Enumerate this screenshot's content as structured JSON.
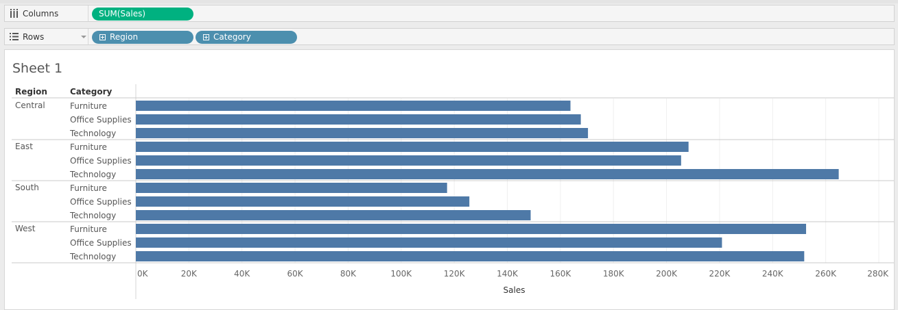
{
  "shelves": {
    "columns": {
      "label": "Columns",
      "pills": [
        "SUM(Sales)"
      ]
    },
    "rows": {
      "label": "Rows",
      "pills": [
        "Region",
        "Category"
      ]
    }
  },
  "sheet": {
    "title": "Sheet 1",
    "headers": {
      "region": "Region",
      "category": "Category"
    }
  },
  "colors": {
    "bar": "#4e79a7",
    "measure_pill": "#00b180",
    "dimension_pill": "#4c8fae"
  },
  "chart_data": {
    "type": "bar",
    "orientation": "horizontal",
    "xlabel": "Sales",
    "xlim": [
      0,
      280000
    ],
    "xticks": [
      "0K",
      "20K",
      "40K",
      "60K",
      "80K",
      "100K",
      "120K",
      "140K",
      "160K",
      "180K",
      "200K",
      "220K",
      "240K",
      "260K",
      "280K"
    ],
    "grid": true,
    "groups": [
      {
        "region": "Central",
        "rows": [
          {
            "category": "Furniture",
            "value": 163800
          },
          {
            "category": "Office Supplies",
            "value": 167700
          },
          {
            "category": "Technology",
            "value": 170400
          }
        ]
      },
      {
        "region": "East",
        "rows": [
          {
            "category": "Furniture",
            "value": 208300
          },
          {
            "category": "Office Supplies",
            "value": 205500
          },
          {
            "category": "Technology",
            "value": 264900
          }
        ]
      },
      {
        "region": "South",
        "rows": [
          {
            "category": "Furniture",
            "value": 117300
          },
          {
            "category": "Office Supplies",
            "value": 125700
          },
          {
            "category": "Technology",
            "value": 148800
          }
        ]
      },
      {
        "region": "West",
        "rows": [
          {
            "category": "Furniture",
            "value": 252600
          },
          {
            "category": "Office Supplies",
            "value": 220900
          },
          {
            "category": "Technology",
            "value": 251900
          }
        ]
      }
    ]
  }
}
